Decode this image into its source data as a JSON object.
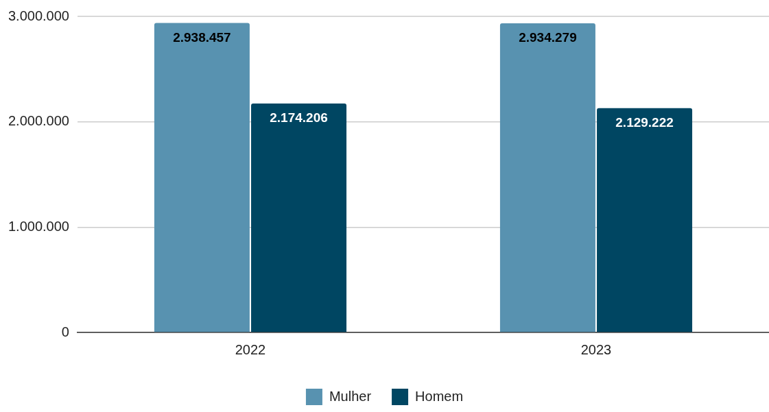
{
  "chart_data": {
    "type": "bar",
    "categories": [
      "2022",
      "2023"
    ],
    "series": [
      {
        "name": "Mulher",
        "color": "#5892b0",
        "values": [
          2938457,
          2934279
        ],
        "value_labels": [
          "2.938.457",
          "2.934.279"
        ]
      },
      {
        "name": "Homem",
        "color": "#004662",
        "values": [
          2174206,
          2129222
        ],
        "value_labels": [
          "2.174.206",
          "2.129.222"
        ]
      }
    ],
    "ylim": [
      0,
      3000000
    ],
    "yticks": [
      0,
      {
        "value": 1000000,
        "label": "1.000.000"
      },
      {
        "value": 2000000,
        "label": "2.000.000"
      },
      {
        "value": 3000000,
        "label": "3.000.000"
      }
    ],
    "grid": "y",
    "legend": "bottom"
  }
}
